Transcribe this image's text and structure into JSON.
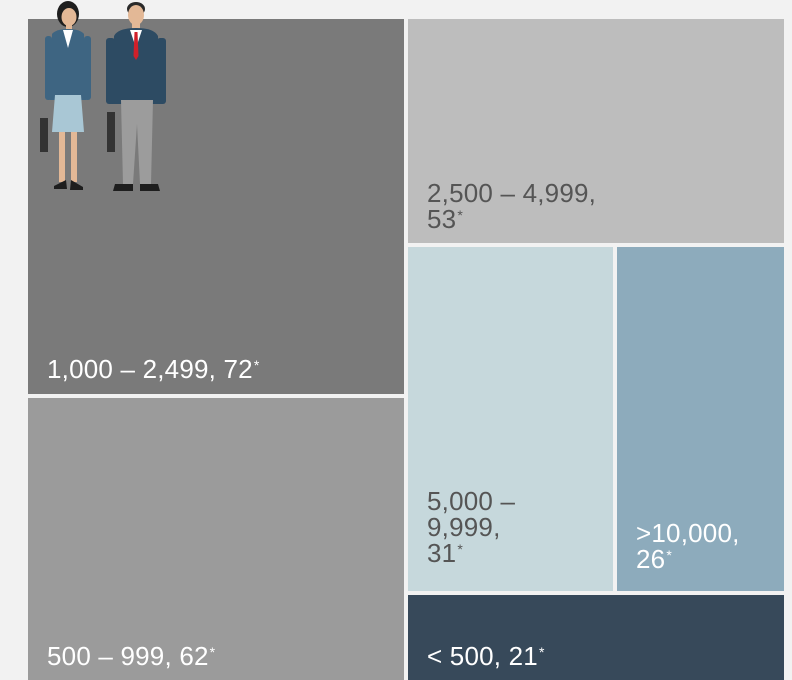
{
  "chart_data": {
    "type": "treemap",
    "title": "",
    "tiles": [
      {
        "range": "1,000 – 2,499",
        "value": 72,
        "note": "*",
        "lines": [
          "1,000 – 2,499, 72"
        ],
        "color": "#7a7a7a",
        "text_color": "#ffffff"
      },
      {
        "range": "500 – 999",
        "value": 62,
        "note": "*",
        "lines": [
          "500 – 999, 62"
        ],
        "color": "#9b9b9b",
        "text_color": "#ffffff"
      },
      {
        "range": "2,500 – 4,999",
        "value": 53,
        "note": "*",
        "lines": [
          "2,500 – 4,999,",
          "53"
        ],
        "color": "#bdbdbd",
        "text_color": "#555555"
      },
      {
        "range": "5,000 – 9,999",
        "value": 31,
        "note": "*",
        "lines": [
          "5,000 –",
          "9,999,",
          "31"
        ],
        "color": "#c6d8dc",
        "text_color": "#555555"
      },
      {
        "range": ">10,000",
        "value": 26,
        "note": "*",
        "lines": [
          ">10,000,",
          "26"
        ],
        "color": "#8dabbc",
        "text_color": "#ffffff"
      },
      {
        "range": "< 500",
        "value": 21,
        "note": "*",
        "lines": [
          "< 500, 21"
        ],
        "color": "#37495a",
        "text_color": "#ffffff"
      }
    ]
  },
  "icons": {
    "illustration": "businesspeople-icon"
  }
}
